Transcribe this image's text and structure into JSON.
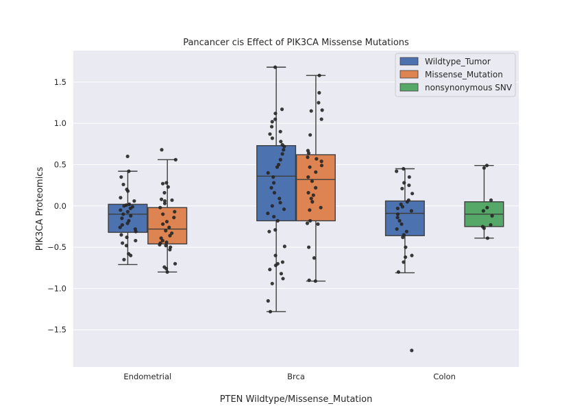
{
  "chart_data": {
    "type": "box",
    "title": "Pancancer cis Effect of PIK3CA Missense Mutations",
    "xlabel": "PTEN Wildtype/Missense_Mutation",
    "ylabel": "PIK3CA Proteomics",
    "ylim": [
      -1.95,
      1.88
    ],
    "yticks": [
      1.5,
      1.0,
      0.5,
      0.0,
      -0.5,
      -1.0,
      -1.5
    ],
    "ytick_labels": [
      "1.5",
      "1.0",
      "0.5",
      "0.0",
      "−0.5",
      "−1.0",
      "−1.5"
    ],
    "categories": [
      "Endometrial",
      "Brca",
      "Colon"
    ],
    "grid": true,
    "legend_position": "top-right",
    "legend": [
      {
        "label": "Wildtype_Tumor",
        "color": "#4c72b0"
      },
      {
        "label": "Missense_Mutation",
        "color": "#dd8452"
      },
      {
        "label": "nonsynonymous SNV",
        "color": "#55a868"
      }
    ],
    "boxes": [
      {
        "category": "Endometrial",
        "series": "Wildtype_Tumor",
        "color": "#4c72b0",
        "whisker_low": -0.71,
        "q1": -0.32,
        "median": -0.1,
        "q3": 0.02,
        "whisker_high": 0.42,
        "points": [
          0.6,
          0.42,
          0.35,
          0.26,
          0.2,
          0.18,
          0.1,
          0.06,
          0.02,
          0.01,
          0.0,
          -0.01,
          -0.03,
          -0.05,
          -0.07,
          -0.1,
          -0.12,
          -0.15,
          -0.18,
          -0.21,
          -0.23,
          -0.26,
          -0.28,
          -0.31,
          -0.35,
          -0.38,
          -0.42,
          -0.45,
          -0.48,
          -0.58,
          -0.6,
          -0.65
        ]
      },
      {
        "category": "Endometrial",
        "series": "Missense_Mutation",
        "color": "#dd8452",
        "whisker_low": -0.8,
        "q1": -0.46,
        "median": -0.28,
        "q3": -0.02,
        "whisker_high": 0.56,
        "points": [
          0.68,
          0.56,
          0.28,
          0.27,
          0.23,
          0.16,
          0.08,
          0.07,
          0.06,
          0.03,
          -0.02,
          -0.07,
          -0.1,
          -0.14,
          -0.19,
          -0.22,
          -0.26,
          -0.3,
          -0.33,
          -0.36,
          -0.39,
          -0.42,
          -0.44,
          -0.45,
          -0.47,
          -0.48,
          -0.5,
          -0.53,
          -0.7,
          -0.74,
          -0.76,
          -0.8
        ]
      },
      {
        "category": "Brca",
        "series": "Wildtype_Tumor",
        "color": "#4c72b0",
        "whisker_low": -1.28,
        "q1": -0.18,
        "median": 0.36,
        "q3": 0.73,
        "whisker_high": 1.68,
        "points": [
          1.68,
          1.17,
          1.12,
          1.05,
          1.02,
          0.96,
          0.9,
          0.87,
          0.82,
          0.78,
          0.74,
          0.72,
          0.68,
          0.63,
          0.56,
          0.5,
          0.47,
          0.4,
          0.35,
          0.28,
          0.22,
          0.16,
          0.09,
          0.04,
          0.0,
          -0.04,
          -0.09,
          -0.13,
          -0.18,
          -0.29,
          -0.31,
          -0.49,
          -0.6,
          -0.68,
          -0.7,
          -0.72,
          -0.77,
          -0.82,
          -0.88,
          -0.94,
          -1.15,
          -1.28
        ]
      },
      {
        "category": "Brca",
        "series": "Missense_Mutation",
        "color": "#dd8452",
        "whisker_low": -0.91,
        "q1": -0.18,
        "median": 0.32,
        "q3": 0.62,
        "whisker_high": 1.58,
        "points": [
          1.58,
          1.37,
          1.25,
          1.16,
          1.15,
          1.05,
          0.86,
          0.67,
          0.64,
          0.59,
          0.57,
          0.54,
          0.49,
          0.47,
          0.41,
          0.35,
          0.3,
          0.22,
          0.16,
          0.13,
          0.09,
          0.05,
          -0.02,
          -0.05,
          -0.18,
          -0.21,
          -0.22,
          -0.5,
          -0.63,
          -0.9,
          -0.91
        ]
      },
      {
        "category": "Colon",
        "series": "Wildtype_Tumor",
        "color": "#4c72b0",
        "whisker_low": -0.81,
        "q1": -0.36,
        "median": -0.09,
        "q3": 0.06,
        "whisker_high": 0.45,
        "points": [
          0.45,
          0.42,
          0.35,
          0.28,
          0.25,
          0.21,
          0.15,
          0.07,
          0.05,
          0.02,
          -0.01,
          -0.03,
          -0.06,
          -0.1,
          -0.14,
          -0.18,
          -0.22,
          -0.28,
          -0.31,
          -0.35,
          -0.38,
          -0.5,
          -0.6,
          -0.62,
          -0.68,
          -0.8,
          -1.75
        ]
      },
      {
        "category": "Colon",
        "series": "nonsynonymous SNV",
        "color": "#55a868",
        "whisker_low": -0.39,
        "q1": -0.25,
        "median": -0.1,
        "q3": 0.05,
        "whisker_high": 0.49,
        "points": [
          0.49,
          0.46,
          0.07,
          -0.02,
          -0.06,
          -0.12,
          -0.23,
          -0.25,
          -0.27,
          -0.39
        ]
      }
    ]
  }
}
